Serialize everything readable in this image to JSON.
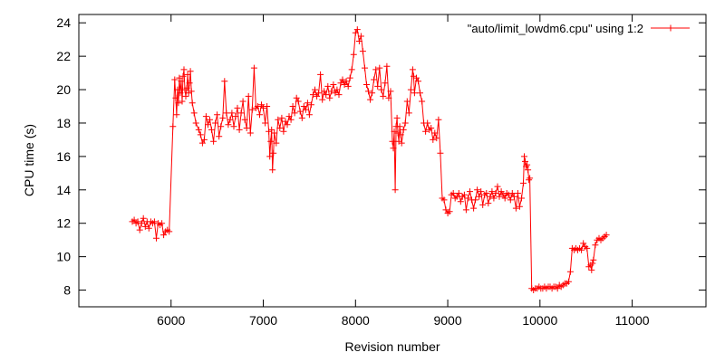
{
  "chart_data": {
    "type": "line",
    "xlabel": "Revision number",
    "ylabel": "CPU time (s)",
    "xlim": [
      5000,
      11800
    ],
    "ylim": [
      7,
      24.5
    ],
    "x_ticks": [
      6000,
      7000,
      8000,
      9000,
      10000,
      11000
    ],
    "y_ticks": [
      8,
      10,
      12,
      14,
      16,
      18,
      20,
      22,
      24
    ],
    "grid": false,
    "legend_position": "top-right",
    "series": [
      {
        "name": "\"auto/limit_lowdm6.cpu\" using 1:2",
        "color": "#ff0000",
        "marker": "plus",
        "points": [
          [
            5580,
            12.1
          ],
          [
            5600,
            12.2
          ],
          [
            5620,
            12.0
          ],
          [
            5640,
            12.1
          ],
          [
            5660,
            11.6
          ],
          [
            5680,
            12.0
          ],
          [
            5700,
            12.3
          ],
          [
            5720,
            11.8
          ],
          [
            5740,
            12.1
          ],
          [
            5760,
            11.7
          ],
          [
            5780,
            12.1
          ],
          [
            5800,
            12.0
          ],
          [
            5820,
            12.1
          ],
          [
            5840,
            11.1
          ],
          [
            5860,
            12.0
          ],
          [
            5880,
            11.9
          ],
          [
            5900,
            12.0
          ],
          [
            5920,
            11.3
          ],
          [
            5940,
            11.5
          ],
          [
            5960,
            11.6
          ],
          [
            5980,
            11.5
          ],
          [
            6020,
            17.8
          ],
          [
            6040,
            20.6
          ],
          [
            6050,
            19.5
          ],
          [
            6060,
            18.5
          ],
          [
            6070,
            20.0
          ],
          [
            6080,
            19.2
          ],
          [
            6090,
            20.7
          ],
          [
            6100,
            19.8
          ],
          [
            6110,
            20.5
          ],
          [
            6120,
            19.3
          ],
          [
            6130,
            20.8
          ],
          [
            6140,
            21.2
          ],
          [
            6150,
            20.0
          ],
          [
            6160,
            19.6
          ],
          [
            6170,
            20.1
          ],
          [
            6180,
            20.9
          ],
          [
            6190,
            19.8
          ],
          [
            6200,
            20.4
          ],
          [
            6210,
            21.1
          ],
          [
            6220,
            19.9
          ],
          [
            6230,
            19.2
          ],
          [
            6250,
            18.6
          ],
          [
            6270,
            18.0
          ],
          [
            6300,
            17.6
          ],
          [
            6320,
            17.3
          ],
          [
            6340,
            16.8
          ],
          [
            6360,
            17.0
          ],
          [
            6380,
            18.4
          ],
          [
            6400,
            17.9
          ],
          [
            6420,
            18.2
          ],
          [
            6440,
            17.6
          ],
          [
            6460,
            16.9
          ],
          [
            6480,
            18.0
          ],
          [
            6500,
            18.5
          ],
          [
            6520,
            17.2
          ],
          [
            6540,
            17.8
          ],
          [
            6560,
            18.3
          ],
          [
            6580,
            20.5
          ],
          [
            6600,
            18.6
          ],
          [
            6620,
            17.9
          ],
          [
            6640,
            18.2
          ],
          [
            6660,
            18.6
          ],
          [
            6680,
            17.8
          ],
          [
            6700,
            18.4
          ],
          [
            6720,
            18.9
          ],
          [
            6740,
            17.6
          ],
          [
            6760,
            18.6
          ],
          [
            6780,
            19.3
          ],
          [
            6800,
            18.2
          ],
          [
            6820,
            17.7
          ],
          [
            6840,
            19.6
          ],
          [
            6860,
            17.4
          ],
          [
            6880,
            18.8
          ],
          [
            6900,
            21.3
          ],
          [
            6920,
            18.9
          ],
          [
            6940,
            19.0
          ],
          [
            6960,
            18.5
          ],
          [
            6980,
            19.1
          ],
          [
            7000,
            18.9
          ],
          [
            7020,
            18.0
          ],
          [
            7040,
            19.0
          ],
          [
            7060,
            17.5
          ],
          [
            7070,
            16.0
          ],
          [
            7080,
            16.9
          ],
          [
            7090,
            17.6
          ],
          [
            7100,
            15.2
          ],
          [
            7110,
            16.2
          ],
          [
            7120,
            17.4
          ],
          [
            7140,
            16.8
          ],
          [
            7160,
            18.2
          ],
          [
            7180,
            17.7
          ],
          [
            7200,
            18.3
          ],
          [
            7220,
            17.5
          ],
          [
            7240,
            18.1
          ],
          [
            7260,
            17.9
          ],
          [
            7280,
            18.4
          ],
          [
            7300,
            18.2
          ],
          [
            7320,
            19.0
          ],
          [
            7340,
            18.6
          ],
          [
            7360,
            19.5
          ],
          [
            7380,
            19.3
          ],
          [
            7400,
            18.7
          ],
          [
            7420,
            18.3
          ],
          [
            7440,
            19.0
          ],
          [
            7460,
            18.8
          ],
          [
            7480,
            19.2
          ],
          [
            7500,
            18.5
          ],
          [
            7520,
            19.1
          ],
          [
            7540,
            19.7
          ],
          [
            7560,
            20.0
          ],
          [
            7580,
            19.6
          ],
          [
            7600,
            19.8
          ],
          [
            7620,
            20.9
          ],
          [
            7640,
            19.4
          ],
          [
            7660,
            19.9
          ],
          [
            7680,
            19.7
          ],
          [
            7700,
            20.2
          ],
          [
            7720,
            19.5
          ],
          [
            7740,
            19.9
          ],
          [
            7760,
            20.3
          ],
          [
            7780,
            19.8
          ],
          [
            7800,
            20.0
          ],
          [
            7820,
            19.7
          ],
          [
            7840,
            20.4
          ],
          [
            7860,
            20.6
          ],
          [
            7880,
            20.3
          ],
          [
            7900,
            20.5
          ],
          [
            7920,
            20.2
          ],
          [
            7940,
            20.7
          ],
          [
            7960,
            21.2
          ],
          [
            7980,
            22.1
          ],
          [
            8000,
            23.4
          ],
          [
            8020,
            23.6
          ],
          [
            8040,
            22.9
          ],
          [
            8060,
            23.2
          ],
          [
            8080,
            22.3
          ],
          [
            8100,
            21.3
          ],
          [
            8120,
            20.3
          ],
          [
            8140,
            19.9
          ],
          [
            8160,
            19.4
          ],
          [
            8180,
            19.8
          ],
          [
            8200,
            20.6
          ],
          [
            8220,
            21.2
          ],
          [
            8240,
            20.2
          ],
          [
            8260,
            21.3
          ],
          [
            8280,
            20.0
          ],
          [
            8300,
            19.6
          ],
          [
            8320,
            20.4
          ],
          [
            8340,
            21.4
          ],
          [
            8360,
            19.5
          ],
          [
            8380,
            19.9
          ],
          [
            8400,
            16.9
          ],
          [
            8410,
            16.5
          ],
          [
            8420,
            17.5
          ],
          [
            8430,
            14.0
          ],
          [
            8440,
            17.8
          ],
          [
            8450,
            18.3
          ],
          [
            8460,
            17.4
          ],
          [
            8470,
            16.9
          ],
          [
            8480,
            17.8
          ],
          [
            8490,
            17.3
          ],
          [
            8500,
            16.8
          ],
          [
            8520,
            17.6
          ],
          [
            8540,
            18.0
          ],
          [
            8560,
            19.3
          ],
          [
            8580,
            18.6
          ],
          [
            8600,
            20.0
          ],
          [
            8620,
            21.2
          ],
          [
            8630,
            20.8
          ],
          [
            8640,
            19.8
          ],
          [
            8660,
            20.7
          ],
          [
            8680,
            20.5
          ],
          [
            8700,
            19.8
          ],
          [
            8720,
            19.3
          ],
          [
            8740,
            18.0
          ],
          [
            8760,
            17.5
          ],
          [
            8780,
            18.0
          ],
          [
            8800,
            17.6
          ],
          [
            8820,
            17.7
          ],
          [
            8840,
            17.0
          ],
          [
            8860,
            17.4
          ],
          [
            8880,
            17.1
          ],
          [
            8900,
            18.2
          ],
          [
            8920,
            16.2
          ],
          [
            8940,
            13.5
          ],
          [
            8960,
            13.4
          ],
          [
            8980,
            12.8
          ],
          [
            9000,
            12.6
          ],
          [
            9020,
            12.7
          ],
          [
            9040,
            13.7
          ],
          [
            9060,
            13.8
          ],
          [
            9080,
            13.5
          ],
          [
            9100,
            13.6
          ],
          [
            9120,
            13.8
          ],
          [
            9140,
            13.3
          ],
          [
            9160,
            13.6
          ],
          [
            9180,
            13.7
          ],
          [
            9200,
            12.8
          ],
          [
            9220,
            13.5
          ],
          [
            9240,
            13.9
          ],
          [
            9260,
            13.4
          ],
          [
            9280,
            12.9
          ],
          [
            9300,
            13.4
          ],
          [
            9320,
            14.0
          ],
          [
            9340,
            13.6
          ],
          [
            9360,
            13.9
          ],
          [
            9380,
            13.1
          ],
          [
            9400,
            13.7
          ],
          [
            9420,
            13.8
          ],
          [
            9440,
            13.2
          ],
          [
            9460,
            13.6
          ],
          [
            9480,
            13.9
          ],
          [
            9500,
            13.5
          ],
          [
            9520,
            13.8
          ],
          [
            9540,
            14.2
          ],
          [
            9560,
            13.6
          ],
          [
            9580,
            13.9
          ],
          [
            9600,
            13.7
          ],
          [
            9620,
            13.5
          ],
          [
            9640,
            13.8
          ],
          [
            9660,
            13.7
          ],
          [
            9680,
            13.4
          ],
          [
            9700,
            13.8
          ],
          [
            9720,
            13.6
          ],
          [
            9740,
            12.9
          ],
          [
            9760,
            13.8
          ],
          [
            9780,
            13.0
          ],
          [
            9800,
            13.5
          ],
          [
            9820,
            14.4
          ],
          [
            9830,
            16.0
          ],
          [
            9840,
            15.7
          ],
          [
            9850,
            15.4
          ],
          [
            9860,
            15.5
          ],
          [
            9870,
            15.2
          ],
          [
            9880,
            14.6
          ],
          [
            9890,
            14.7
          ],
          [
            9910,
            8.1
          ],
          [
            9930,
            8.0
          ],
          [
            9950,
            8.1
          ],
          [
            9970,
            8.1
          ],
          [
            9990,
            8.2
          ],
          [
            10010,
            8.1
          ],
          [
            10030,
            8.1
          ],
          [
            10050,
            8.2
          ],
          [
            10070,
            8.1
          ],
          [
            10090,
            8.2
          ],
          [
            10110,
            8.2
          ],
          [
            10130,
            8.1
          ],
          [
            10150,
            8.2
          ],
          [
            10170,
            8.2
          ],
          [
            10190,
            8.1
          ],
          [
            10210,
            8.3
          ],
          [
            10230,
            8.2
          ],
          [
            10250,
            8.3
          ],
          [
            10270,
            8.4
          ],
          [
            10290,
            8.4
          ],
          [
            10310,
            8.5
          ],
          [
            10330,
            9.1
          ],
          [
            10350,
            10.5
          ],
          [
            10370,
            10.4
          ],
          [
            10390,
            10.5
          ],
          [
            10410,
            10.4
          ],
          [
            10430,
            10.5
          ],
          [
            10450,
            10.4
          ],
          [
            10470,
            10.8
          ],
          [
            10490,
            10.6
          ],
          [
            10510,
            10.5
          ],
          [
            10530,
            9.4
          ],
          [
            10550,
            9.5
          ],
          [
            10560,
            9.2
          ],
          [
            10570,
            9.6
          ],
          [
            10580,
            9.8
          ],
          [
            10600,
            10.7
          ],
          [
            10620,
            11.0
          ],
          [
            10640,
            11.1
          ],
          [
            10660,
            11.0
          ],
          [
            10680,
            11.1
          ],
          [
            10700,
            11.2
          ],
          [
            10720,
            11.3
          ]
        ]
      }
    ]
  }
}
